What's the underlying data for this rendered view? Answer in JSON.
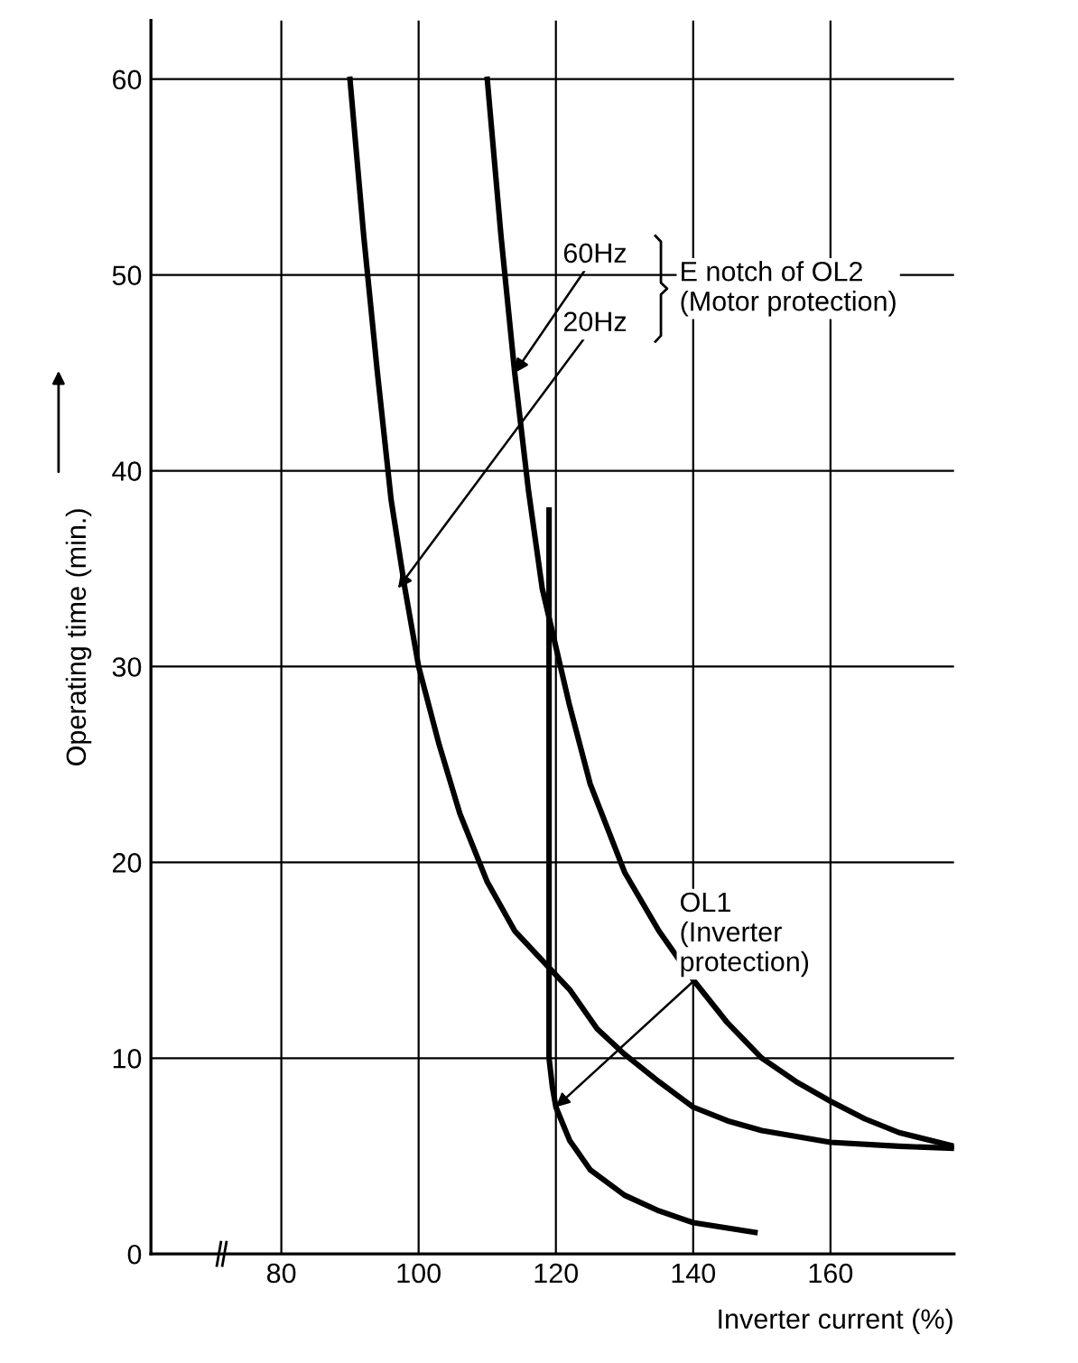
{
  "chart_data": {
    "type": "line",
    "xlabel": "Inverter current (%)",
    "ylabel": "Operating time (min.)",
    "xlim": [
      61,
      178
    ],
    "xticks": [
      80,
      100,
      120,
      140,
      160
    ],
    "ylim": [
      0,
      63
    ],
    "yticks": [
      0,
      10,
      20,
      30,
      40,
      50,
      60
    ],
    "grid": true,
    "legend": false,
    "marker": "none",
    "line_style": "solid",
    "series": [
      {
        "color": "#000000",
        "x": [
          110,
          112,
          114,
          116,
          118,
          120,
          122,
          125,
          130,
          135,
          140,
          145,
          150,
          155,
          160,
          165,
          170,
          178
        ],
        "values": [
          60,
          52,
          45,
          39,
          34,
          31,
          28,
          24,
          19.5,
          16.5,
          14,
          11.8,
          10,
          8.8,
          7.8,
          6.9,
          6.2,
          5.5
        ]
      },
      {
        "color": "#000000",
        "x": [
          90,
          92,
          94,
          96,
          98,
          100,
          103,
          106,
          110,
          114,
          118,
          122,
          126,
          130,
          135,
          140,
          145,
          150,
          160,
          170,
          178
        ],
        "values": [
          60,
          52,
          45,
          38.5,
          34,
          30,
          26,
          22.5,
          19,
          16.5,
          15,
          13.5,
          11.5,
          10.2,
          8.8,
          7.5,
          6.8,
          6.3,
          5.7,
          5.5,
          5.4
        ]
      },
      {
        "color": "#000000",
        "x": [
          119,
          119,
          119,
          119.5,
          120,
          122,
          125,
          130,
          135,
          140,
          149
        ],
        "values": [
          38,
          20,
          10,
          8.5,
          7.5,
          5.8,
          4.3,
          3,
          2.2,
          1.6,
          1.1
        ]
      }
    ],
    "annotations": [
      {
        "text": "60Hz",
        "x": 114,
        "y": 45
      },
      {
        "text": "20Hz",
        "x": 97,
        "y": 34
      },
      "E notch of OL2\n(Motor protection)",
      {
        "text": "OL1\n(Inverter\nprotection)",
        "x": 120,
        "y": 7.5
      }
    ]
  }
}
